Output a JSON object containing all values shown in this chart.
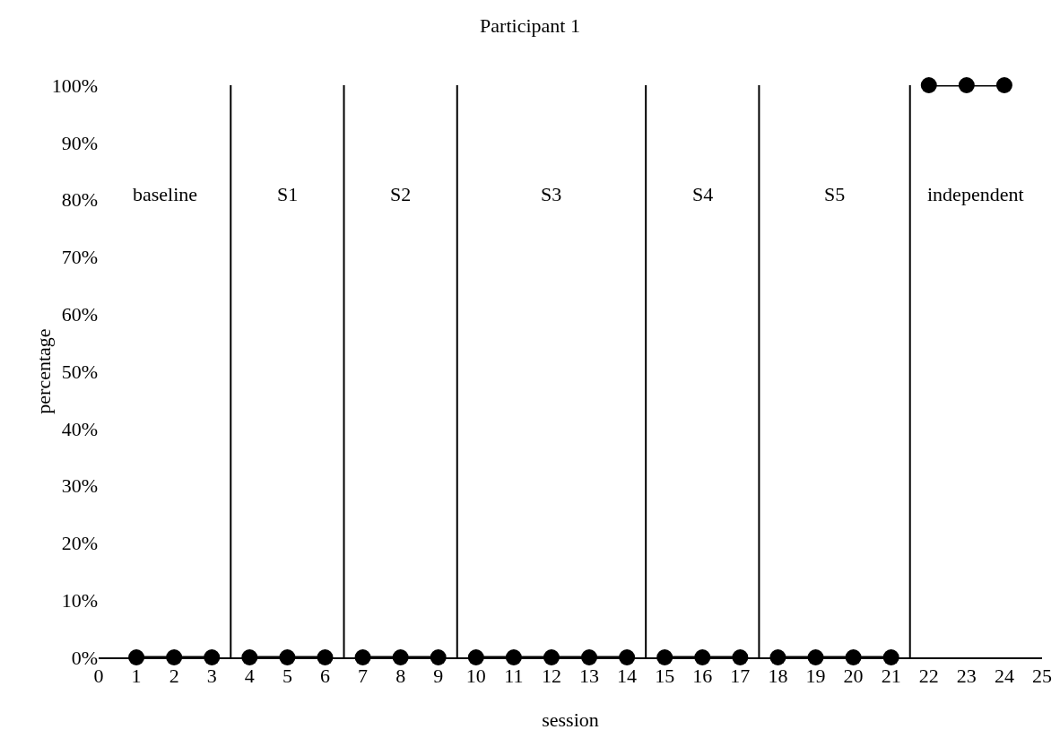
{
  "chart_data": {
    "type": "line",
    "title": "Participant 1",
    "xlabel": "session",
    "ylabel": "percentage",
    "xlim": [
      0,
      25
    ],
    "xticks": [
      0,
      1,
      2,
      3,
      4,
      5,
      6,
      7,
      8,
      9,
      10,
      11,
      12,
      13,
      14,
      15,
      16,
      17,
      18,
      19,
      20,
      21,
      22,
      23,
      24,
      25
    ],
    "ylim": [
      0,
      100
    ],
    "yticks": [
      {
        "value": 0,
        "label": "0%"
      },
      {
        "value": 10,
        "label": "10%"
      },
      {
        "value": 20,
        "label": "20%"
      },
      {
        "value": 30,
        "label": "30%"
      },
      {
        "value": 40,
        "label": "40%"
      },
      {
        "value": 50,
        "label": "50%"
      },
      {
        "value": 60,
        "label": "60%"
      },
      {
        "value": 70,
        "label": "70%"
      },
      {
        "value": 80,
        "label": "80%"
      },
      {
        "value": 90,
        "label": "90%"
      },
      {
        "value": 100,
        "label": "100%"
      }
    ],
    "grid": false,
    "marker": "circle",
    "line_style": "solid",
    "series": [
      {
        "color": "#000000",
        "x": [
          1,
          2,
          3
        ],
        "values": [
          0,
          0,
          0
        ]
      },
      {
        "color": "#000000",
        "x": [
          4,
          5,
          6
        ],
        "values": [
          0,
          0,
          0
        ]
      },
      {
        "color": "#000000",
        "x": [
          7,
          8,
          9
        ],
        "values": [
          0,
          0,
          0
        ]
      },
      {
        "color": "#000000",
        "x": [
          10,
          11,
          12,
          13,
          14
        ],
        "values": [
          0,
          0,
          0,
          0,
          0
        ]
      },
      {
        "color": "#000000",
        "x": [
          15,
          16,
          17
        ],
        "values": [
          0,
          0,
          0
        ]
      },
      {
        "color": "#000000",
        "x": [
          18,
          19,
          20,
          21
        ],
        "values": [
          0,
          0,
          0,
          0
        ]
      },
      {
        "color": "#000000",
        "x": [
          22,
          23,
          24
        ],
        "values": [
          100,
          100,
          100
        ]
      }
    ],
    "ref_lines": [
      {
        "axis": "x",
        "value": 3.5,
        "color": "#000000"
      },
      {
        "axis": "x",
        "value": 6.5,
        "color": "#000000"
      },
      {
        "axis": "x",
        "value": 9.5,
        "color": "#000000"
      },
      {
        "axis": "x",
        "value": 14.5,
        "color": "#000000"
      },
      {
        "axis": "x",
        "value": 17.5,
        "color": "#000000"
      },
      {
        "axis": "x",
        "value": 21.5,
        "color": "#000000"
      }
    ],
    "annotations": [
      "baseline",
      "S1",
      "S2",
      "S3",
      "S4",
      "S5",
      "independent"
    ]
  }
}
